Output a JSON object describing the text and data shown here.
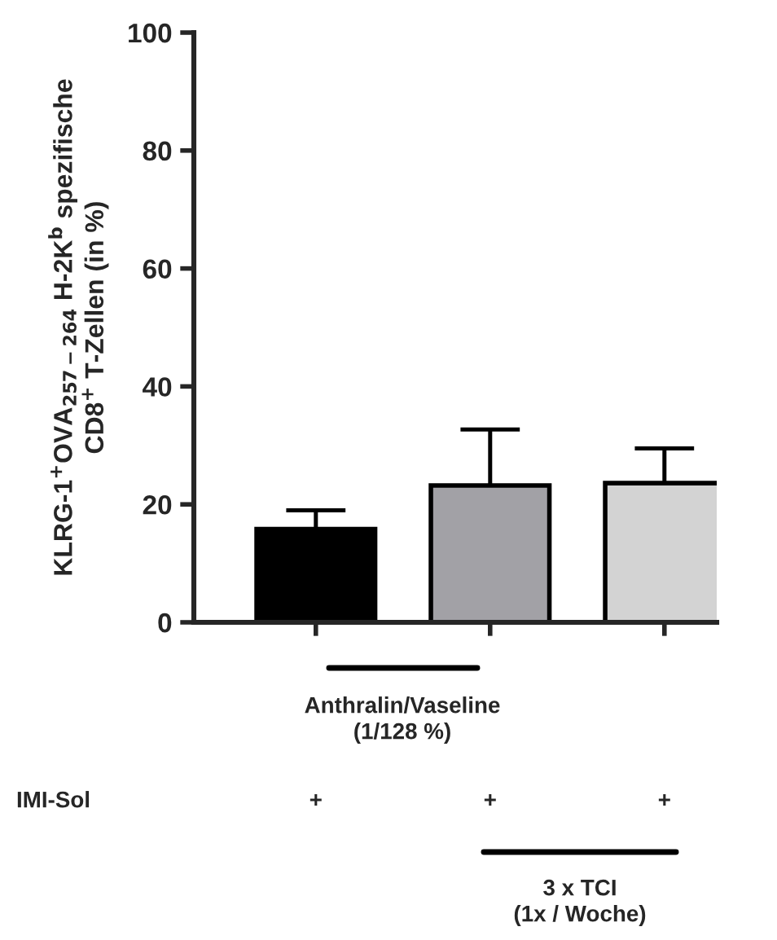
{
  "chart_data": {
    "type": "bar",
    "ylabel": "KLRG-1$^{+}$OVA$_{257−264}$ H-2K$^{b}$ spezifische\nCD8$^{+}$ T-Zellen (in %)",
    "categories": [
      null,
      null,
      null
    ],
    "values": [
      15.8,
      23.2,
      23.6
    ],
    "colors": [
      "#000000",
      "#a2a1a6",
      "#d3d3d3"
    ],
    "errors": [
      [
        15.8,
        19
      ],
      [
        23.2,
        32.7
      ],
      [
        23.6,
        29.5
      ]
    ],
    "ylim": [
      0,
      100
    ],
    "yticks": [
      0,
      20,
      40,
      60,
      80,
      100
    ],
    "grid": false,
    "annotations": [
      "Anthralin/Vaseline\n(1/128 %)",
      "IMI-Sol",
      "+",
      "+",
      "+",
      "3 x TCI\n(1x / Woche)"
    ]
  }
}
